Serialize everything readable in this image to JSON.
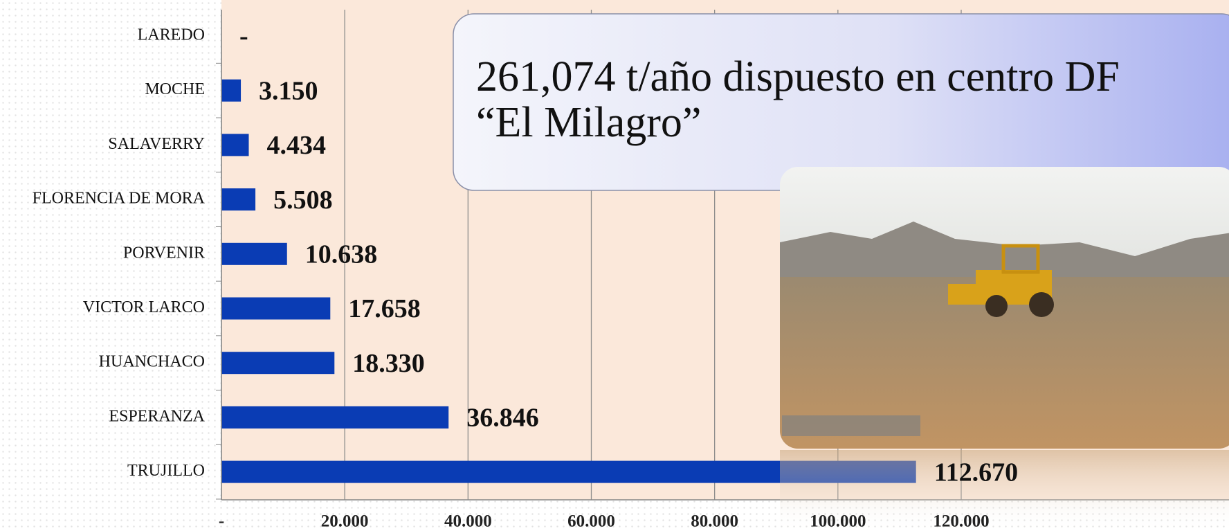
{
  "chart_data": {
    "type": "bar",
    "orientation": "horizontal",
    "title": "261,074 t/año dispuesto en centro DF “El Milagro”",
    "categories": [
      "LAREDO",
      "MOCHE",
      "SALAVERRY",
      "FLORENCIA DE MORA",
      "PORVENIR",
      "VICTOR LARCO",
      "HUANCHACO",
      "ESPERANZA",
      "TRUJILLO"
    ],
    "values": [
      0,
      3150,
      4434,
      5508,
      10638,
      17658,
      18330,
      36846,
      112670
    ],
    "value_labels": [
      "-",
      "3.150",
      "4.434",
      "5.508",
      "10.638",
      "17.658",
      "18.330",
      "36.846",
      "112.670"
    ],
    "color": "#0a3cb4",
    "xlim": [
      0,
      120000
    ],
    "xticks": [
      {
        "value": 0,
        "label": "-"
      },
      {
        "value": 20000,
        "label": "20.000"
      },
      {
        "value": 40000,
        "label": "40.000"
      },
      {
        "value": 60000,
        "label": "60.000"
      },
      {
        "value": 80000,
        "label": "80.000"
      },
      {
        "value": 100000,
        "label": "100.000"
      },
      {
        "value": 120000,
        "label": "120.000"
      }
    ],
    "grid": true
  }
}
